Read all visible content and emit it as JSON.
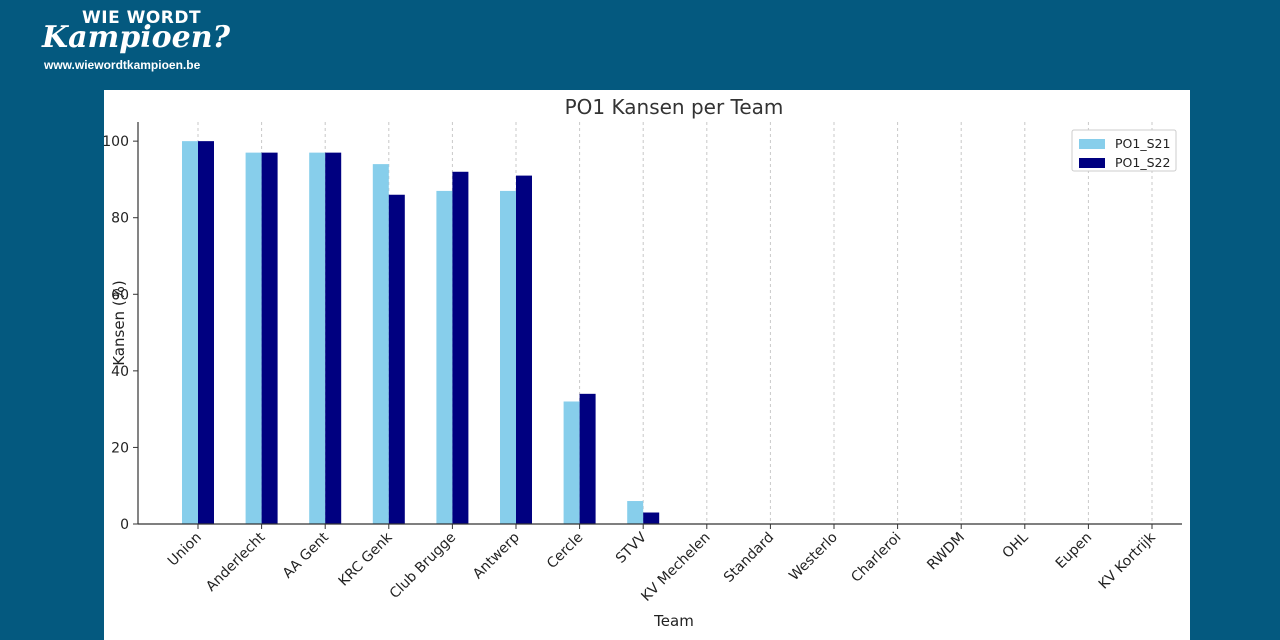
{
  "brand": {
    "line1": "WIE WORDT",
    "line2": "Kampioen?",
    "url": "www.wiewordtkampioen.be"
  },
  "chart_data": {
    "type": "bar",
    "title": "PO1 Kansen per Team",
    "xlabel": "Team",
    "ylabel": "Kansen (%)",
    "ylim": [
      0,
      105
    ],
    "yticks": [
      0,
      20,
      40,
      60,
      80,
      100
    ],
    "grid": "vertical dashed",
    "legend_position": "top-right",
    "categories": [
      "Union",
      "Anderlecht",
      "AA Gent",
      "KRC Genk",
      "Club Brugge",
      "Antwerp",
      "Cercle",
      "STVV",
      "KV Mechelen",
      "Standard",
      "Westerlo",
      "Charleroi",
      "RWDM",
      "OHL",
      "Eupen",
      "KV Kortrijk"
    ],
    "series": [
      {
        "name": "PO1_S21",
        "color": "#87ceeb",
        "values": [
          100,
          97,
          97,
          94,
          87,
          87,
          32,
          6,
          0,
          0,
          0,
          0,
          0,
          0,
          0,
          0
        ]
      },
      {
        "name": "PO1_S22",
        "color": "#000080",
        "values": [
          100,
          97,
          97,
          86,
          92,
          91,
          34,
          3,
          0,
          0,
          0,
          0,
          0,
          0,
          0,
          0
        ]
      }
    ]
  }
}
